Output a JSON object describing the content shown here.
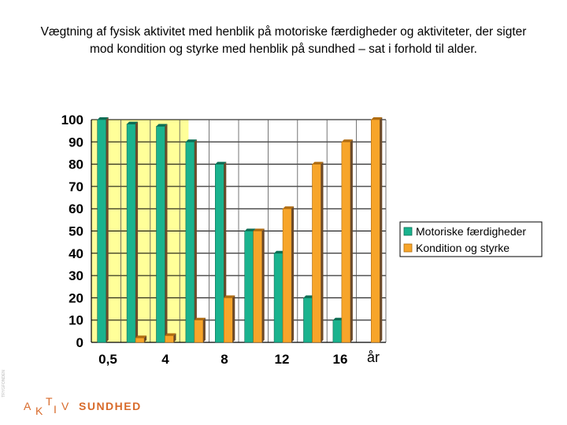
{
  "title": "Vægtning af fysisk aktivitet med henblik på motoriske færdigheder og aktiviteter, der sigter mod kondition og styrke med henblik på sundhed – sat i forhold til alder.",
  "logo": {
    "a": "A",
    "k": "K",
    "t": "T",
    "i": "I",
    "v": "V",
    "sundhed": "SUNDHED"
  },
  "side_mark": "TRYGFONDEN",
  "colors": {
    "motor": "#1ab38e",
    "motor_dark": "#0d6e55",
    "kondition": "#f7a52a",
    "kondition_dark": "#b06c10",
    "highlight": "#ffff99",
    "bar_side": "#6b4a2a"
  },
  "chart_data": {
    "type": "bar",
    "title": "",
    "xlabel": "år",
    "ylabel": "",
    "ylim": [
      0,
      100
    ],
    "yticks": [
      "0",
      "10",
      "20",
      "30",
      "40",
      "50",
      "60",
      "70",
      "80",
      "90",
      "100"
    ],
    "categories": [
      "0,5",
      "",
      "",
      "4",
      "",
      "8",
      "",
      "12",
      "",
      "16"
    ],
    "xtick_labels": [
      "0,5",
      "4",
      "8",
      "12",
      "16"
    ],
    "series": [
      {
        "name": "Motoriske færdigheder",
        "values": [
          100,
          98,
          97,
          90,
          80,
          50,
          40,
          20,
          10,
          0
        ]
      },
      {
        "name": "Kondition og styrke",
        "values": [
          0,
          2,
          3,
          10,
          20,
          50,
          60,
          80,
          90,
          100
        ]
      }
    ],
    "legend_position": "right",
    "grid": true,
    "highlight_region": "0,5–4"
  }
}
